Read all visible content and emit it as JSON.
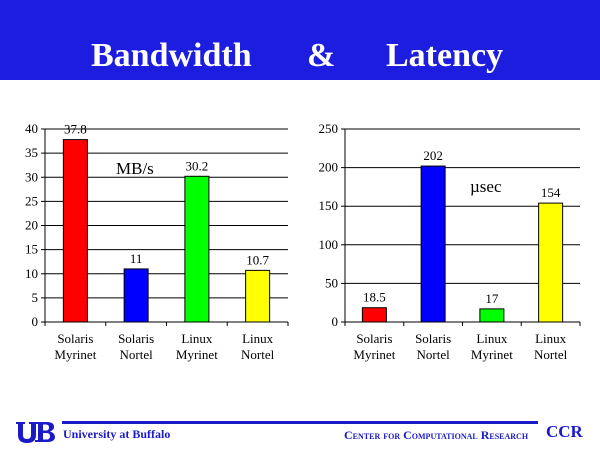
{
  "slide": {
    "title_left": "Bandwidth",
    "title_amp": "&",
    "title_right": "Latency",
    "title_bg": "#1d1ddf"
  },
  "footer": {
    "university": "University at Buffalo",
    "center": "Center for Computational Research",
    "ccr": "CCR",
    "logo_icon": "ub-logo-icon",
    "rule_color": "#1a1ac8"
  },
  "chart_data": [
    {
      "type": "bar",
      "categories": [
        [
          "Solaris",
          "Myrinet"
        ],
        [
          "Solaris",
          "Nortel"
        ],
        [
          "Linux",
          "Myrinet"
        ],
        [
          "Linux",
          "Nortel"
        ]
      ],
      "values": [
        37.8,
        11,
        30.2,
        10.7
      ],
      "value_labels": [
        "37.8",
        "11",
        "30.2",
        "10.7"
      ],
      "colors": [
        "#ff0000",
        "#0000ff",
        "#00ff00",
        "#ffff00"
      ],
      "ylim": [
        0,
        40
      ],
      "yticks": [
        0,
        5,
        10,
        15,
        20,
        25,
        30,
        35,
        40
      ],
      "annotation": "MB/s",
      "grid": true
    },
    {
      "type": "bar",
      "categories": [
        [
          "Solaris",
          "Myrinet"
        ],
        [
          "Solaris",
          "Nortel"
        ],
        [
          "Linux",
          "Myrinet"
        ],
        [
          "Linux",
          "Nortel"
        ]
      ],
      "values": [
        18.5,
        202,
        17,
        154
      ],
      "value_labels": [
        "18.5",
        "202",
        "17",
        "154"
      ],
      "colors": [
        "#ff0000",
        "#0000ff",
        "#00ff00",
        "#ffff00"
      ],
      "ylim": [
        0,
        250
      ],
      "yticks": [
        0,
        50,
        100,
        150,
        200,
        250
      ],
      "annotation": "µsec",
      "grid": true
    }
  ]
}
